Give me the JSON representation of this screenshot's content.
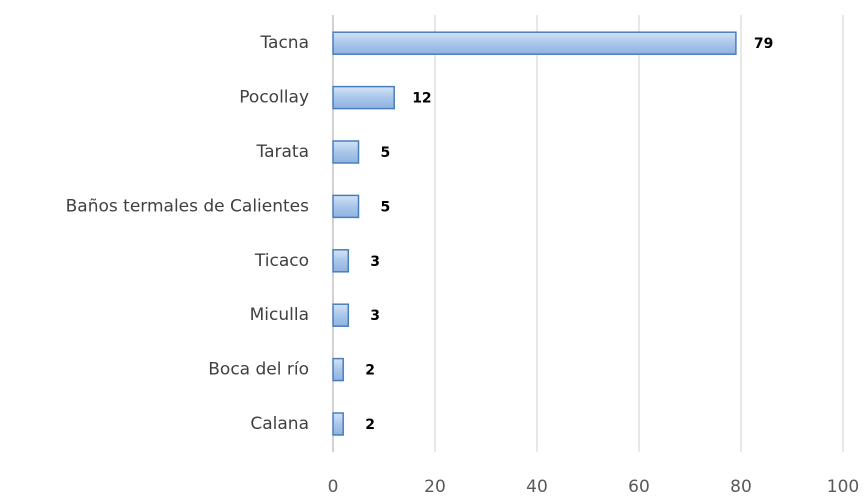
{
  "chart_data": {
    "type": "bar",
    "orientation": "horizontal",
    "categories": [
      "Tacna",
      "Pocollay",
      "Tarata",
      "Baños termales de Calientes",
      "Ticaco",
      "Miculla",
      "Boca del río",
      "Calana"
    ],
    "values": [
      79,
      12,
      5,
      5,
      3,
      3,
      2,
      2
    ],
    "color": "#a9c6ea",
    "edge_color": "#4a7ebb",
    "xlim": [
      0,
      100
    ],
    "xticks": [
      0,
      20,
      40,
      60,
      80,
      100
    ],
    "grid": true
  }
}
